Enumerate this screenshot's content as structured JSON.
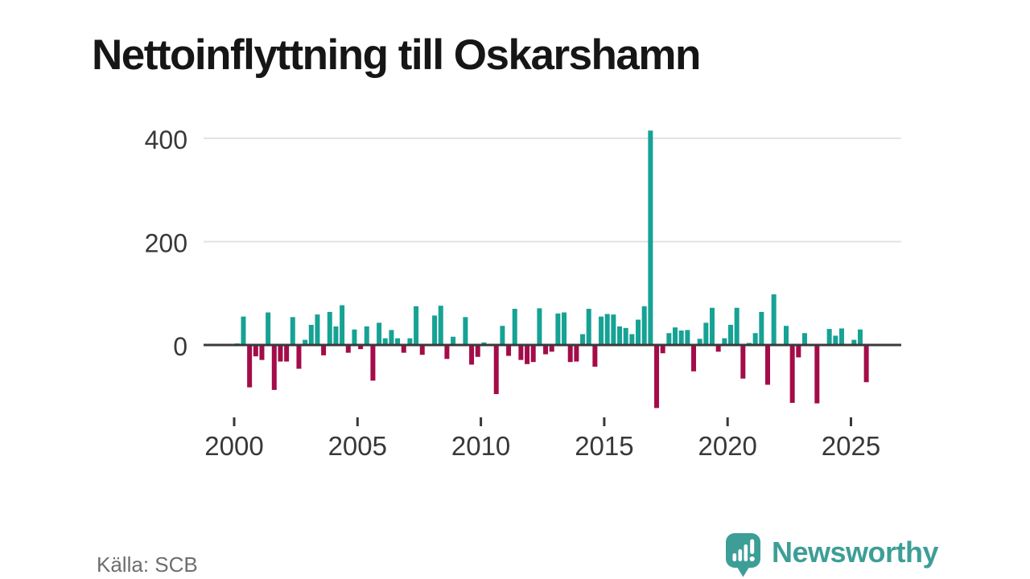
{
  "title": "Nettoinflyttning till Oskarshamn",
  "source": "Källa: SCB",
  "brand": {
    "name": "Newsworthy",
    "color": "#3D9E97",
    "icon": "newsworthy-chart-bubble-icon"
  },
  "colors": {
    "positive": "#16A294",
    "negative": "#A40C49",
    "axis": "#383838",
    "zero_line": "#3a3a3a",
    "grid": "#e3e3e3",
    "title_text": "#161616",
    "muted_text": "#6e6e6e"
  },
  "chart_data": {
    "type": "bar",
    "title": "Nettoinflyttning till Oskarshamn",
    "frequency": "quarterly",
    "x_start": "2000 Q1",
    "x_end": "2025 Q3",
    "grid": "horizontal",
    "legend": "none",
    "ylim": [
      -150,
      450
    ],
    "yticks": [
      0,
      200,
      400
    ],
    "xticks": [
      2000,
      2005,
      2010,
      2015,
      2020,
      2025
    ],
    "series": [
      {
        "year": 2000,
        "values": [
          3,
          55,
          -82,
          -22
        ]
      },
      {
        "year": 2001,
        "values": [
          -29,
          63,
          -87,
          -32
        ]
      },
      {
        "year": 2002,
        "values": [
          -32,
          54,
          -46,
          10
        ]
      },
      {
        "year": 2003,
        "values": [
          39,
          59,
          -20,
          64
        ]
      },
      {
        "year": 2004,
        "values": [
          36,
          77,
          -15,
          30
        ]
      },
      {
        "year": 2005,
        "values": [
          -8,
          36,
          -69,
          43
        ]
      },
      {
        "year": 2006,
        "values": [
          13,
          29,
          13,
          -15
        ]
      },
      {
        "year": 2007,
        "values": [
          13,
          75,
          -19,
          0
        ]
      },
      {
        "year": 2008,
        "values": [
          57,
          76,
          -27,
          16
        ]
      },
      {
        "year": 2009,
        "values": [
          0,
          54,
          -38,
          -23
        ]
      },
      {
        "year": 2010,
        "values": [
          5,
          0,
          -95,
          37
        ]
      },
      {
        "year": 2011,
        "values": [
          -21,
          70,
          -29,
          -37
        ]
      },
      {
        "year": 2012,
        "values": [
          -33,
          71,
          -18,
          -13
        ]
      },
      {
        "year": 2013,
        "values": [
          61,
          63,
          -33,
          -32
        ]
      },
      {
        "year": 2014,
        "values": [
          21,
          70,
          -42,
          55
        ]
      },
      {
        "year": 2015,
        "values": [
          60,
          59,
          36,
          33
        ]
      },
      {
        "year": 2016,
        "values": [
          21,
          49,
          75,
          415
        ]
      },
      {
        "year": 2017,
        "values": [
          -122,
          -16,
          23,
          34
        ]
      },
      {
        "year": 2018,
        "values": [
          28,
          29,
          -51,
          12
        ]
      },
      {
        "year": 2019,
        "values": [
          43,
          72,
          -13,
          13
        ]
      },
      {
        "year": 2020,
        "values": [
          39,
          72,
          -65,
          4
        ]
      },
      {
        "year": 2021,
        "values": [
          23,
          64,
          -77,
          98
        ]
      },
      {
        "year": 2022,
        "values": [
          0,
          37,
          -112,
          -24
        ]
      },
      {
        "year": 2023,
        "values": [
          23,
          0,
          -113,
          0
        ]
      },
      {
        "year": 2024,
        "values": [
          31,
          18,
          32,
          0
        ]
      },
      {
        "year": 2025,
        "values": [
          10,
          30,
          -72
        ]
      }
    ]
  }
}
